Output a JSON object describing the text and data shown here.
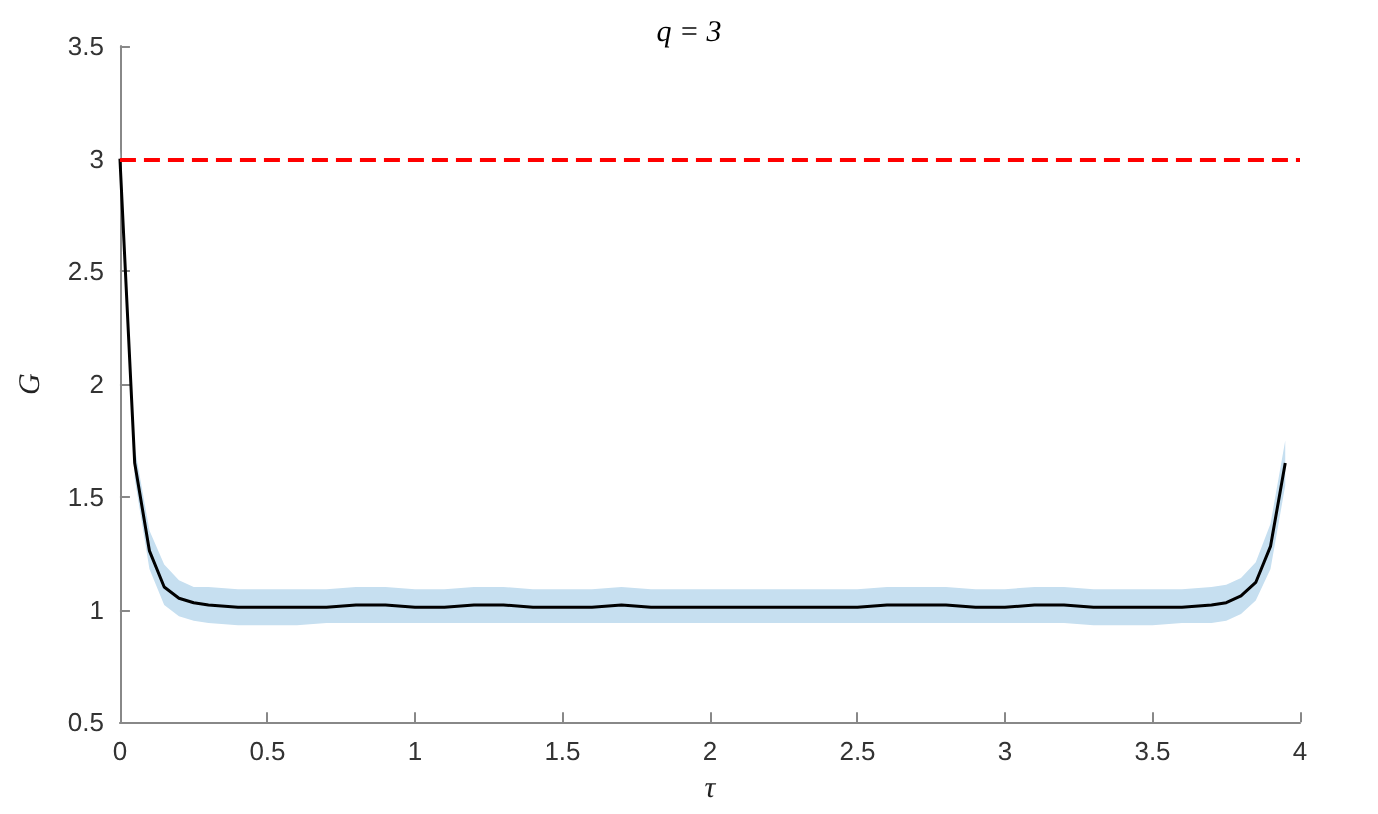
{
  "chart_data": {
    "type": "line",
    "title": "q = 3",
    "xlabel": "τ",
    "ylabel": "G",
    "series": [
      {
        "color": "#000000",
        "x": [
          0,
          0.05,
          0.1,
          0.15,
          0.2,
          0.25,
          0.3,
          0.4,
          0.5,
          0.6,
          0.7,
          0.8,
          0.9,
          1,
          1.1,
          1.2,
          1.3,
          1.4,
          1.5,
          1.6,
          1.7,
          1.8,
          1.9,
          2,
          2.1,
          2.2,
          2.3,
          2.4,
          2.5,
          2.6,
          2.7,
          2.8,
          2.9,
          3,
          3.1,
          3.2,
          3.3,
          3.4,
          3.5,
          3.6,
          3.7,
          3.75,
          3.8,
          3.85,
          3.9,
          3.95
        ],
        "values": [
          3,
          1.65,
          1.26,
          1.1,
          1.05,
          1.03,
          1.02,
          1.01,
          1.01,
          1.01,
          1.01,
          1.02,
          1.02,
          1.01,
          1.01,
          1.02,
          1.02,
          1.01,
          1.01,
          1.01,
          1.02,
          1.01,
          1.01,
          1.01,
          1.01,
          1.01,
          1.01,
          1.01,
          1.01,
          1.02,
          1.02,
          1.02,
          1.01,
          1.01,
          1.02,
          1.02,
          1.01,
          1.01,
          1.01,
          1.01,
          1.02,
          1.03,
          1.06,
          1.12,
          1.28,
          1.65
        ],
        "lower": [
          2.95,
          1.58,
          1.18,
          1.02,
          0.97,
          0.95,
          0.94,
          0.93,
          0.93,
          0.93,
          0.94,
          0.94,
          0.94,
          0.94,
          0.94,
          0.94,
          0.94,
          0.94,
          0.94,
          0.94,
          0.94,
          0.94,
          0.94,
          0.94,
          0.94,
          0.94,
          0.94,
          0.94,
          0.94,
          0.94,
          0.94,
          0.94,
          0.94,
          0.94,
          0.94,
          0.94,
          0.93,
          0.93,
          0.93,
          0.94,
          0.94,
          0.95,
          0.98,
          1.04,
          1.18,
          1.55
        ],
        "upper": [
          3.05,
          1.72,
          1.35,
          1.2,
          1.13,
          1.1,
          1.1,
          1.09,
          1.09,
          1.09,
          1.09,
          1.1,
          1.1,
          1.09,
          1.09,
          1.1,
          1.1,
          1.09,
          1.09,
          1.09,
          1.1,
          1.09,
          1.09,
          1.09,
          1.09,
          1.09,
          1.09,
          1.09,
          1.09,
          1.1,
          1.1,
          1.1,
          1.09,
          1.09,
          1.1,
          1.1,
          1.09,
          1.09,
          1.09,
          1.09,
          1.1,
          1.11,
          1.14,
          1.21,
          1.38,
          1.75
        ]
      }
    ],
    "ref_lines": [
      {
        "axis": "y",
        "value": 3,
        "color": "#ff0000",
        "line_style": "dashed"
      }
    ],
    "xlim": [
      0,
      4
    ],
    "xticks": [
      0,
      0.5,
      1,
      1.5,
      2,
      2.5,
      3,
      3.5,
      4
    ],
    "ylim": [
      0.5,
      3.5
    ],
    "yticks": [
      0.5,
      1,
      1.5,
      2,
      2.5,
      3,
      3.5
    ],
    "grid": false,
    "marker": "none",
    "line_style": "solid"
  }
}
